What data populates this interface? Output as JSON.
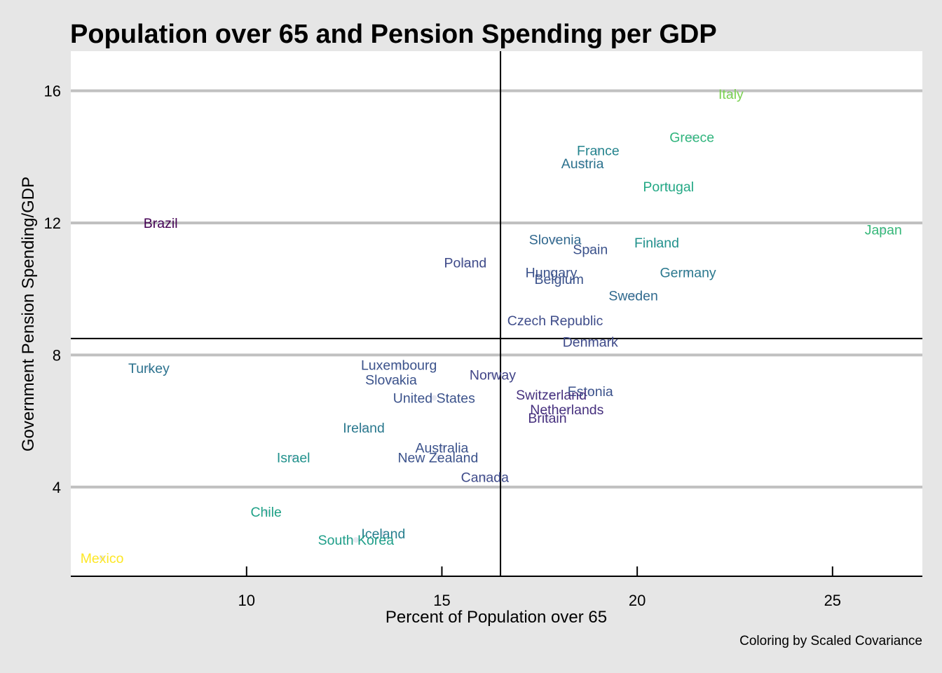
{
  "chart_data": {
    "type": "scatter",
    "title": "Population over 65 and Pension Spending per GDP",
    "caption": "Coloring by Scaled Covariance",
    "xlabel": "Percent of Population over 65",
    "ylabel": "Government Pension Spending/GDP",
    "xlim": [
      5.5,
      27.3
    ],
    "ylim": [
      1.3,
      17.2
    ],
    "x_ticks": [
      10,
      15,
      20,
      25
    ],
    "y_ticks": [
      4,
      8,
      12,
      16
    ],
    "grid": "horizontal major lines only",
    "reference_lines": {
      "x": 16.5,
      "y": 8.5
    },
    "color_scale": "viridis",
    "points": [
      {
        "label": "Italy",
        "x": 22.4,
        "y": 15.9,
        "color": "#7ad151"
      },
      {
        "label": "Greece",
        "x": 21.4,
        "y": 14.6,
        "color": "#2fb47c"
      },
      {
        "label": "France",
        "x": 19.0,
        "y": 14.2,
        "color": "#25848e"
      },
      {
        "label": "Austria",
        "x": 18.6,
        "y": 13.8,
        "color": "#2c728e"
      },
      {
        "label": "Portugal",
        "x": 20.8,
        "y": 13.1,
        "color": "#22a884"
      },
      {
        "label": "Brazil",
        "x": 7.8,
        "y": 12.0,
        "color": "#440154"
      },
      {
        "label": "Japan",
        "x": 26.3,
        "y": 11.8,
        "color": "#35b779"
      },
      {
        "label": "Slovenia",
        "x": 17.9,
        "y": 11.5,
        "color": "#31688e"
      },
      {
        "label": "Finland",
        "x": 20.5,
        "y": 11.4,
        "color": "#21918c"
      },
      {
        "label": "Spain",
        "x": 18.8,
        "y": 11.2,
        "color": "#3b528b"
      },
      {
        "label": "Poland",
        "x": 15.6,
        "y": 10.8,
        "color": "#3e4a89"
      },
      {
        "label": "Hungary",
        "x": 17.8,
        "y": 10.5,
        "color": "#3b528b"
      },
      {
        "label": "Germany",
        "x": 21.3,
        "y": 10.5,
        "color": "#2a788e"
      },
      {
        "label": "Belgium",
        "x": 18.0,
        "y": 10.3,
        "color": "#3b528b"
      },
      {
        "label": "Sweden",
        "x": 19.9,
        "y": 9.8,
        "color": "#306a8e"
      },
      {
        "label": "Czech Republic",
        "x": 17.9,
        "y": 9.05,
        "color": "#3e4c8a"
      },
      {
        "label": "Denmark",
        "x": 18.8,
        "y": 8.4,
        "color": "#3e4a89"
      },
      {
        "label": "Turkey",
        "x": 7.5,
        "y": 7.6,
        "color": "#2c728e"
      },
      {
        "label": "Luxembourg",
        "x": 13.9,
        "y": 7.7,
        "color": "#3b528b"
      },
      {
        "label": "Norway",
        "x": 16.3,
        "y": 7.4,
        "color": "#414487"
      },
      {
        "label": "Slovakia",
        "x": 13.7,
        "y": 7.25,
        "color": "#3b528b"
      },
      {
        "label": "Estonia",
        "x": 18.8,
        "y": 6.9,
        "color": "#3b528b"
      },
      {
        "label": "Switzerland",
        "x": 17.8,
        "y": 6.8,
        "color": "#46307e"
      },
      {
        "label": "United States",
        "x": 14.8,
        "y": 6.7,
        "color": "#3b528b"
      },
      {
        "label": "Netherlands",
        "x": 18.2,
        "y": 6.35,
        "color": "#46307e"
      },
      {
        "label": "Britain",
        "x": 17.7,
        "y": 6.1,
        "color": "#46307e"
      },
      {
        "label": "Ireland",
        "x": 13.0,
        "y": 5.8,
        "color": "#2a788e"
      },
      {
        "label": "Australia",
        "x": 15.0,
        "y": 5.2,
        "color": "#3b528b"
      },
      {
        "label": "New Zealand",
        "x": 14.9,
        "y": 4.9,
        "color": "#3b528b"
      },
      {
        "label": "Israel",
        "x": 11.2,
        "y": 4.9,
        "color": "#21918c"
      },
      {
        "label": "Canada",
        "x": 16.1,
        "y": 4.3,
        "color": "#3e4a89"
      },
      {
        "label": "Chile",
        "x": 10.5,
        "y": 3.25,
        "color": "#1fa187"
      },
      {
        "label": "Iceland",
        "x": 13.5,
        "y": 2.6,
        "color": "#277f8e"
      },
      {
        "label": "South Korea",
        "x": 12.8,
        "y": 2.4,
        "color": "#1f9e89"
      },
      {
        "label": "Mexico",
        "x": 6.3,
        "y": 1.85,
        "color": "#fde725"
      }
    ]
  }
}
